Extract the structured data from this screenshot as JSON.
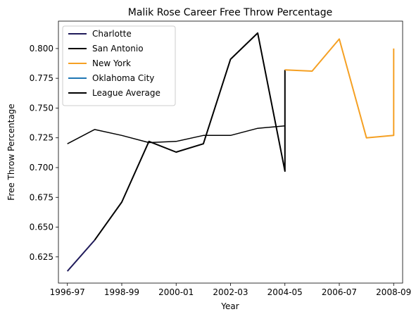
{
  "chart_data": {
    "type": "line",
    "title": "Malik Rose Career Free Throw Percentage",
    "xlabel": "Year",
    "ylabel": "Free Throw Percentage",
    "x_seasons": [
      "1996-97",
      "1997-98",
      "1998-99",
      "1999-00",
      "2000-01",
      "2001-02",
      "2002-03",
      "2003-04",
      "2004-05",
      "2005-06",
      "2006-07",
      "2007-08",
      "2008-09"
    ],
    "x_tick_labels": [
      "1996-97",
      "1998-99",
      "2000-01",
      "2002-03",
      "2004-05",
      "2006-07",
      "2008-09"
    ],
    "xlim": [
      "1996-97",
      "2008-09"
    ],
    "ylim": [
      0.603,
      0.823
    ],
    "y_ticks": [
      0.625,
      0.65,
      0.675,
      0.7,
      0.725,
      0.75,
      0.775,
      0.8
    ],
    "y_tick_labels": [
      "0.625",
      "0.650",
      "0.675",
      "0.700",
      "0.725",
      "0.750",
      "0.775",
      "0.800"
    ],
    "grid": false,
    "legend_position": "top-left",
    "series": [
      {
        "name": "Charlotte",
        "color": "#1f1a5a",
        "points": [
          {
            "x": "1996-97",
            "y": 0.613
          },
          {
            "x": "1997-98",
            "y": 0.639
          }
        ]
      },
      {
        "name": "San Antonio",
        "color": "#000000",
        "points": [
          {
            "x": "1997-98",
            "y": 0.639
          },
          {
            "x": "1998-99",
            "y": 0.671
          },
          {
            "x": "1999-00",
            "y": 0.722
          },
          {
            "x": "2000-01",
            "y": 0.713
          },
          {
            "x": "2001-02",
            "y": 0.72
          },
          {
            "x": "2002-03",
            "y": 0.791
          },
          {
            "x": "2003-04",
            "y": 0.813
          },
          {
            "x": "2004-05",
            "y": 0.697
          },
          {
            "x": "2004-05",
            "y": 0.782
          }
        ]
      },
      {
        "name": "New York",
        "color": "#f5a023",
        "points": [
          {
            "x": "2004-05",
            "y": 0.782
          },
          {
            "x": "2005-06",
            "y": 0.781
          },
          {
            "x": "2006-07",
            "y": 0.808
          },
          {
            "x": "2007-08",
            "y": 0.725
          },
          {
            "x": "2008-09",
            "y": 0.727
          },
          {
            "x": "2008-09",
            "y": 0.8
          }
        ]
      },
      {
        "name": "Oklahoma City",
        "color": "#1f77b4",
        "points": []
      },
      {
        "name": "League Average",
        "color": "#000000",
        "thin": true,
        "points": [
          {
            "x": "1996-97",
            "y": 0.72
          },
          {
            "x": "1997-98",
            "y": 0.732
          },
          {
            "x": "1998-99",
            "y": 0.727
          },
          {
            "x": "1999-00",
            "y": 0.721
          },
          {
            "x": "2000-01",
            "y": 0.722
          },
          {
            "x": "2001-02",
            "y": 0.727
          },
          {
            "x": "2002-03",
            "y": 0.727
          },
          {
            "x": "2003-04",
            "y": 0.733
          },
          {
            "x": "2004-05",
            "y": 0.735
          }
        ]
      }
    ]
  }
}
